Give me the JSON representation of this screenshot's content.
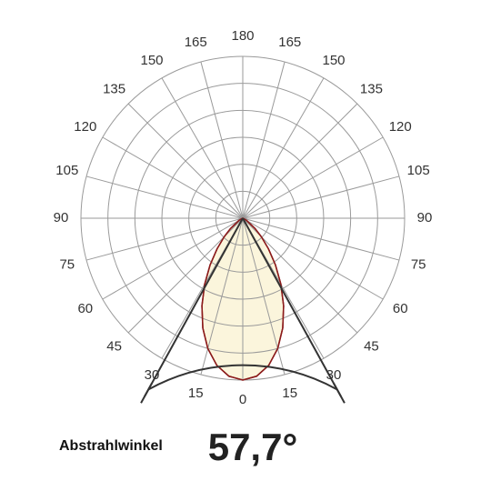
{
  "chart_data": {
    "type": "polar",
    "theta_zero": "bottom",
    "thetaticks": [
      0,
      15,
      30,
      45,
      60,
      75,
      90,
      105,
      120,
      135,
      150,
      165,
      180,
      {
        "value": 195,
        "label": "165"
      },
      {
        "value": 210,
        "label": "150"
      },
      {
        "value": 225,
        "label": "135"
      },
      {
        "value": 240,
        "label": "120"
      },
      {
        "value": 255,
        "label": "105"
      },
      {
        "value": 270,
        "label": "90"
      },
      {
        "value": 285,
        "label": "75"
      },
      {
        "value": 300,
        "label": "60"
      },
      {
        "value": 315,
        "label": "45"
      },
      {
        "value": 330,
        "label": "30"
      },
      {
        "value": 345,
        "label": "15"
      }
    ],
    "rlim": [
      0,
      1
    ],
    "series": [
      {
        "color": "#8b1a1a",
        "fill": "#fbf5dc",
        "theta": [
          -90,
          -80,
          -70,
          -60,
          -50,
          -45,
          -40,
          -35,
          -30,
          -25,
          -20,
          -15,
          -10,
          -5,
          0,
          5,
          10,
          15,
          20,
          25,
          30,
          35,
          40,
          45,
          50,
          60,
          70,
          80,
          90
        ],
        "r": [
          0,
          0,
          0.004,
          0.027,
          0.099,
          0.163,
          0.247,
          0.352,
          0.471,
          0.597,
          0.722,
          0.834,
          0.923,
          0.98,
          1,
          0.98,
          0.923,
          0.834,
          0.722,
          0.597,
          0.471,
          0.352,
          0.247,
          0.163,
          0.099,
          0.027,
          0.004,
          0,
          0
        ]
      }
    ],
    "beam_label": "Abstrahlwinkel",
    "beam_angle": 57.7,
    "beam_angle_label": "57,7°"
  }
}
